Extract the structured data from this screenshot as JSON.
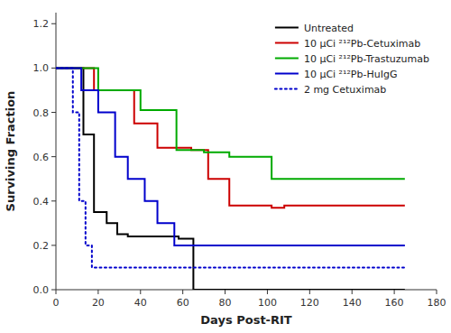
{
  "chart_data": {
    "type": "line",
    "xlabel": "Days Post-RIT",
    "ylabel": "Surviving Fraction",
    "xlim": [
      0,
      180
    ],
    "ylim": [
      0.0,
      1.25
    ],
    "xticks": [
      0,
      20,
      40,
      60,
      80,
      100,
      120,
      140,
      160,
      180
    ],
    "yticks": [
      {
        "value": 0.0,
        "label": "0.0"
      },
      0.2,
      0.4,
      0.6,
      0.8,
      {
        "value": 1.0,
        "label": "1.0"
      },
      1.2
    ],
    "grid": false,
    "legend": "upper right",
    "series": [
      {
        "name": "Untreated",
        "color": "#000000",
        "line_style": "solid",
        "x": [
          0,
          13,
          13,
          18,
          18,
          24,
          24,
          29,
          29,
          34,
          34,
          40,
          40,
          58,
          58,
          65,
          65,
          165
        ],
        "values": [
          1.0,
          1.0,
          0.7,
          0.7,
          0.35,
          0.35,
          0.3,
          0.3,
          0.25,
          0.25,
          0.24,
          0.24,
          0.24,
          0.24,
          0.23,
          0.23,
          0.0,
          0.0
        ]
      },
      {
        "name": "10 μCi ²¹²Pb-Cetuximab",
        "color": "#cc0000",
        "line_style": "solid",
        "x": [
          0,
          18,
          18,
          37,
          37,
          48,
          48,
          64,
          64,
          72,
          72,
          82,
          82,
          102,
          102,
          108,
          108,
          165
        ],
        "values": [
          1.0,
          1.0,
          0.9,
          0.9,
          0.75,
          0.75,
          0.64,
          0.64,
          0.63,
          0.63,
          0.5,
          0.5,
          0.38,
          0.38,
          0.37,
          0.37,
          0.38,
          0.38
        ]
      },
      {
        "name": "10 μCi ²¹²Pb-Trastuzumab",
        "color": "#00aa00",
        "line_style": "solid",
        "x": [
          0,
          20,
          20,
          40,
          40,
          57,
          57,
          70,
          70,
          82,
          82,
          102,
          102,
          122,
          122,
          165
        ],
        "values": [
          1.0,
          1.0,
          0.9,
          0.9,
          0.81,
          0.81,
          0.63,
          0.63,
          0.62,
          0.62,
          0.6,
          0.6,
          0.5,
          0.5,
          0.5,
          0.5
        ]
      },
      {
        "name": "10 μCi ²¹²Pb-HuIgG",
        "color": "#0000cc",
        "line_style": "solid",
        "x": [
          0,
          12,
          12,
          20,
          20,
          28,
          28,
          34,
          34,
          42,
          42,
          48,
          48,
          56,
          56,
          65,
          65,
          70,
          70,
          165
        ],
        "values": [
          1.0,
          1.0,
          0.9,
          0.9,
          0.8,
          0.8,
          0.6,
          0.6,
          0.5,
          0.5,
          0.4,
          0.4,
          0.3,
          0.3,
          0.2,
          0.2,
          0.2,
          0.2,
          0.2,
          0.2
        ]
      },
      {
        "name": "2 mg Cetuximab",
        "color": "#0000cc",
        "line_style": "dotted",
        "x": [
          0,
          8,
          8,
          11,
          11,
          14,
          14,
          17,
          17,
          21,
          21,
          165
        ],
        "values": [
          1.0,
          1.0,
          0.8,
          0.8,
          0.4,
          0.4,
          0.2,
          0.2,
          0.1,
          0.1,
          0.1,
          0.1
        ]
      }
    ]
  }
}
